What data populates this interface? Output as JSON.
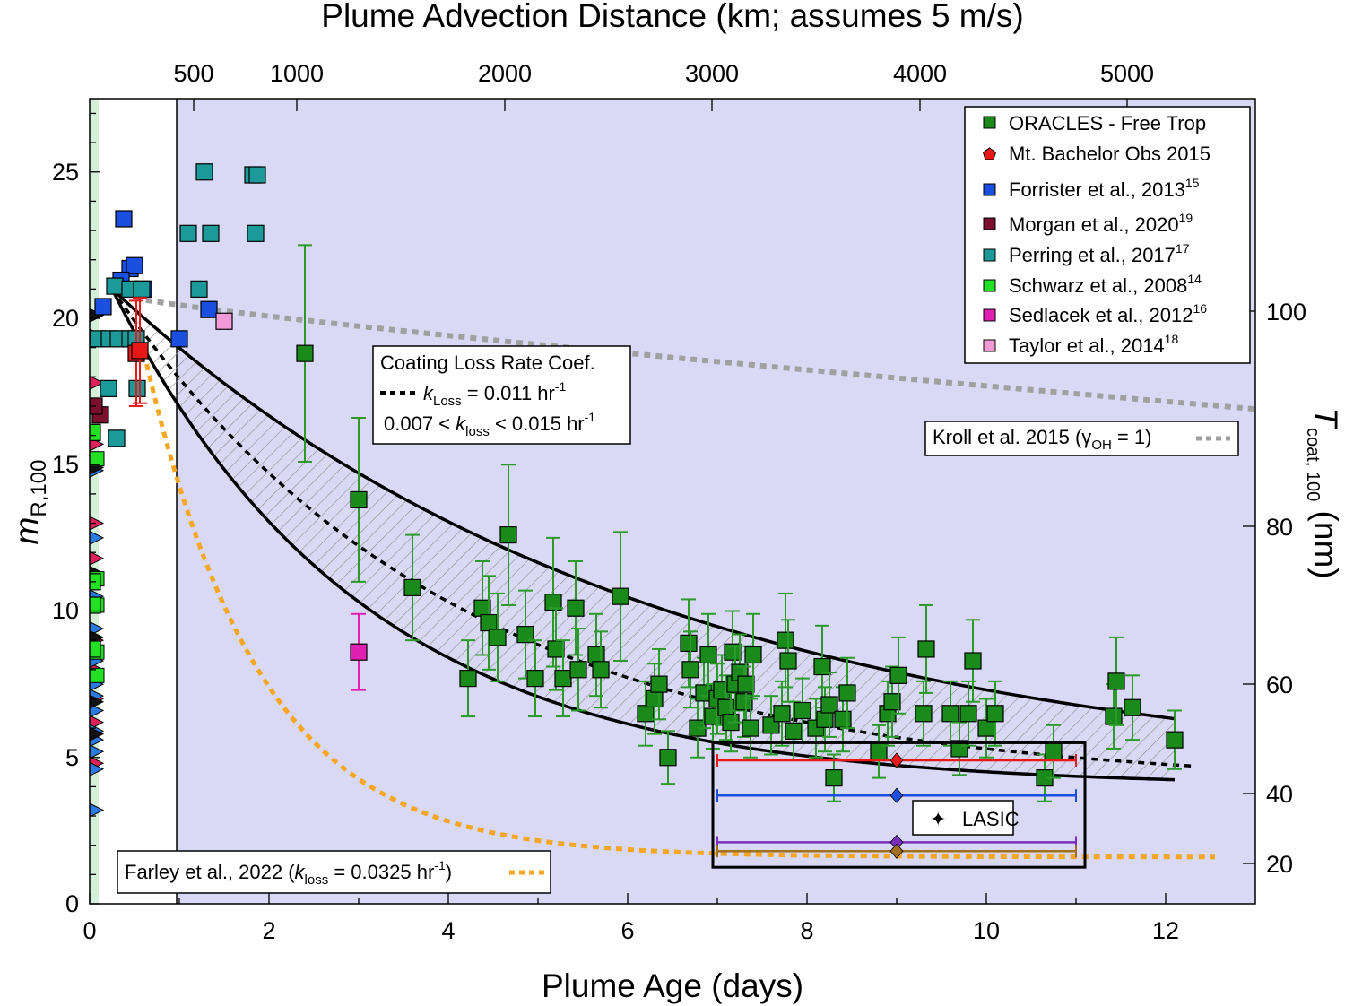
{
  "chart_data": {
    "type": "scatter",
    "xlabel": "Plume Age (days)",
    "x2label": "Plume Advection Distance (km; assumes 5 m/s)",
    "ylabel": "m",
    "ylabel_sub": "R,100",
    "y2label": "T",
    "y2label_sub": "coat, 100",
    "y2label_suffix": " (nm)",
    "xlim": [
      0,
      13
    ],
    "ylim": [
      0,
      27.5
    ],
    "x_ticks": [
      "0",
      "2",
      "4",
      "6",
      "8",
      "10",
      "12"
    ],
    "y_ticks": [
      "0",
      "5",
      "10",
      "15",
      "20",
      "25"
    ],
    "x2_ticks": [
      "500",
      "1000",
      "2000",
      "3000",
      "4000",
      "5000"
    ],
    "y2_ticks": [
      "20",
      "40",
      "60",
      "80",
      "100"
    ],
    "legend": [
      {
        "label": "ORACLES - Free Trop",
        "sup": "",
        "color": "#1a8a1a",
        "marker": "square"
      },
      {
        "label": "Mt. Bachelor Obs 2015",
        "sup": "",
        "color": "#e81818",
        "marker": "pentagon"
      },
      {
        "label": "Forrister et al., 2013",
        "sup": "15",
        "color": "#1a4fe0",
        "marker": "square"
      },
      {
        "label": "Morgan et al., 2020",
        "sup": "19",
        "color": "#7a0f2e",
        "marker": "square"
      },
      {
        "label": "Perring et al., 2017",
        "sup": "17",
        "color": "#1c9a9a",
        "marker": "square"
      },
      {
        "label": "Schwarz et al., 2008",
        "sup": "14",
        "color": "#22e022",
        "marker": "square"
      },
      {
        "label": "Sedlacek et al., 2012",
        "sup": "16",
        "color": "#e020b0",
        "marker": "square"
      },
      {
        "label": "Taylor et al., 2014",
        "sup": "18",
        "color": "#f29ad8",
        "marker": "square"
      }
    ],
    "annotations": {
      "coating_title": "Coating Loss Rate Coef.",
      "k_line_pre": "k",
      "k_line_sub": "Loss",
      "k_line_mid": " = 0.011 hr",
      "k_line_sup": "-1",
      "k_range_pre": "0.007 < ",
      "k_range_k": "k",
      "k_range_sub": "loss",
      "k_range_mid": " < 0.015 hr",
      "k_range_sup": "-1",
      "kroll_pre": "Kroll et al. 2015 (γ",
      "kroll_sub": "OH",
      "kroll_post": " = 1)",
      "farley_pre": "Farley et al., 2022 (",
      "farley_k": "k",
      "farley_sub": "loss",
      "farley_mid": " = 0.0325 hr",
      "farley_sup": "-1",
      "farley_post": ")",
      "lasic": "LASIC"
    },
    "colors": {
      "background_shade": "#d9d9f5",
      "edge_shade": "#d4f0d8",
      "oracles": "#1a8a1a",
      "fit": "#000000",
      "kroll": "#a0a0a0",
      "farley": "#f5a623"
    },
    "curves": {
      "fit_start": [
        0.25,
        21.0
      ],
      "fit_k": 0.011,
      "fit_k_low": 0.007,
      "fit_k_high": 0.015,
      "asymptote": 4.0,
      "kroll": {
        "x": [
          0.5,
          13
        ],
        "y": [
          20.7,
          16.9
        ]
      },
      "farley": {
        "k": 0.0325,
        "asymptote": 1.6,
        "start": [
          0.55,
          19.6
        ]
      }
    },
    "series": [
      {
        "name": "ORACLES - Free Trop",
        "color": "#1a8a1a",
        "points": [
          [
            2.4,
            18.8,
            3.7
          ],
          [
            3.0,
            13.8,
            2.8
          ],
          [
            3.6,
            10.8,
            1.8
          ],
          [
            4.22,
            7.7,
            1.3
          ],
          [
            4.38,
            10.1,
            1.6
          ],
          [
            4.45,
            9.6,
            1.6
          ],
          [
            4.55,
            9.1,
            1.5
          ],
          [
            4.67,
            12.6,
            2.4
          ],
          [
            4.86,
            9.2,
            1.5
          ],
          [
            4.97,
            7.7,
            1.3
          ],
          [
            5.17,
            10.3,
            2.2
          ],
          [
            5.2,
            8.7,
            1.4
          ],
          [
            5.28,
            7.7,
            1.3
          ],
          [
            5.42,
            10.1,
            1.6
          ],
          [
            5.45,
            8.0,
            1.4
          ],
          [
            5.65,
            8.5,
            1.4
          ],
          [
            5.7,
            8.0,
            1.3
          ],
          [
            5.92,
            10.5,
            2.2
          ],
          [
            6.2,
            6.5,
            1.1
          ],
          [
            6.3,
            7.0,
            1.2
          ],
          [
            6.35,
            7.5,
            1.2
          ],
          [
            6.45,
            5.0,
            0.9
          ],
          [
            6.68,
            8.9,
            1.5
          ],
          [
            6.7,
            8.0,
            1.3
          ],
          [
            6.78,
            6.0,
            1.0
          ],
          [
            6.85,
            7.2,
            1.2
          ],
          [
            6.9,
            8.5,
            1.4
          ],
          [
            6.95,
            6.4,
            1.1
          ],
          [
            7.0,
            7.0,
            1.2
          ],
          [
            7.05,
            7.3,
            1.2
          ],
          [
            7.1,
            6.7,
            1.1
          ],
          [
            7.15,
            6.2,
            1.0
          ],
          [
            7.17,
            8.6,
            1.4
          ],
          [
            7.2,
            7.5,
            1.3
          ],
          [
            7.25,
            7.9,
            1.3
          ],
          [
            7.3,
            6.9,
            1.2
          ],
          [
            7.32,
            7.5,
            1.3
          ],
          [
            7.37,
            6.0,
            1.0
          ],
          [
            7.4,
            8.5,
            1.4
          ],
          [
            7.6,
            6.1,
            1.0
          ],
          [
            7.72,
            6.5,
            1.1
          ],
          [
            7.76,
            9.0,
            1.6
          ],
          [
            7.79,
            8.3,
            1.4
          ],
          [
            7.85,
            5.9,
            1.0
          ],
          [
            7.95,
            6.6,
            1.1
          ],
          [
            8.1,
            6.0,
            1.0
          ],
          [
            8.17,
            8.1,
            1.4
          ],
          [
            8.2,
            6.3,
            1.1
          ],
          [
            8.25,
            6.8,
            1.1
          ],
          [
            8.3,
            4.3,
            0.8
          ],
          [
            8.4,
            6.3,
            1.1
          ],
          [
            8.45,
            7.2,
            1.2
          ],
          [
            8.8,
            5.2,
            0.9
          ],
          [
            8.9,
            6.5,
            1.1
          ],
          [
            8.95,
            6.9,
            1.2
          ],
          [
            9.02,
            7.8,
            1.3
          ],
          [
            9.3,
            6.5,
            1.1
          ],
          [
            9.33,
            8.7,
            1.5
          ],
          [
            9.6,
            6.5,
            1.1
          ],
          [
            9.7,
            5.3,
            0.9
          ],
          [
            9.8,
            6.5,
            1.1
          ],
          [
            9.85,
            8.3,
            1.4
          ],
          [
            10.0,
            6.0,
            1.0
          ],
          [
            10.1,
            6.5,
            1.1
          ],
          [
            10.65,
            4.3,
            0.8
          ],
          [
            10.75,
            5.2,
            0.9
          ],
          [
            11.42,
            6.4,
            1.1
          ],
          [
            11.45,
            7.6,
            1.5
          ],
          [
            11.63,
            6.7,
            1.1
          ],
          [
            12.1,
            5.6,
            1.0
          ]
        ]
      },
      {
        "name": "Forrister et al., 2013",
        "color": "#1a4fe0",
        "points": [
          [
            0.38,
            23.4
          ],
          [
            0.45,
            21.7
          ],
          [
            0.5,
            21.8
          ],
          [
            0.15,
            20.4
          ],
          [
            1.0,
            19.3
          ],
          [
            1.33,
            20.3
          ],
          [
            0.35,
            21.3
          ],
          [
            0.6,
            21.0
          ]
        ]
      },
      {
        "name": "Perring et al., 2017",
        "color": "#1c9a9a",
        "points": [
          [
            1.28,
            25.0
          ],
          [
            1.82,
            24.9
          ],
          [
            1.87,
            24.9
          ],
          [
            1.1,
            22.9
          ],
          [
            1.35,
            22.9
          ],
          [
            1.85,
            22.9
          ],
          [
            1.22,
            21.0
          ],
          [
            0.28,
            21.1
          ],
          [
            0.45,
            21.0
          ],
          [
            0.58,
            21.0
          ],
          [
            0.1,
            19.3
          ],
          [
            0.22,
            19.3
          ],
          [
            0.32,
            19.3
          ],
          [
            0.45,
            19.3
          ],
          [
            0.52,
            19.3
          ],
          [
            0.21,
            17.6
          ],
          [
            0.53,
            17.6
          ],
          [
            0.3,
            15.9
          ]
        ]
      },
      {
        "name": "Taylor et al., 2014",
        "color": "#f29ad8",
        "points": [
          [
            1.5,
            19.9
          ]
        ]
      },
      {
        "name": "Sedlacek et al., 2012",
        "color": "#e020b0",
        "points": [
          [
            3.0,
            8.6,
            1.3
          ]
        ]
      },
      {
        "name": "Mt. Bachelor Obs 2015",
        "color": "#e81818",
        "points": [
          [
            0.52,
            18.8,
            1.8
          ],
          [
            0.56,
            18.9,
            1.8
          ]
        ]
      },
      {
        "name": "Morgan et al., 2020",
        "color": "#7a0f2e",
        "points": [
          [
            0.12,
            16.7
          ],
          [
            0.05,
            17.0
          ]
        ]
      },
      {
        "name": "Schwarz et al., 2008",
        "color": "#22e022",
        "points": [
          [
            0.03,
            16.1
          ],
          [
            0.03,
            11.0
          ],
          [
            0.03,
            10.2
          ],
          [
            0.03,
            8.7
          ]
        ]
      }
    ],
    "edge_markers": {
      "x": 0.04,
      "blue_y": [
        14.8,
        12.5,
        10.5,
        9.4,
        8.3,
        7.5,
        7.1,
        6.6,
        5.9,
        5.6,
        5.2,
        4.6,
        3.2
      ],
      "red_y": [
        17.8,
        15.7,
        13.0,
        11.8,
        9.0,
        8.0,
        7.0,
        6.2,
        4.8
      ],
      "black_y": [
        20.1,
        19.4,
        14.9,
        11.3,
        9.1,
        6.9,
        5.8
      ],
      "green_y": [
        15.2,
        11.1,
        10.2,
        8.6,
        7.8
      ]
    },
    "lasic": {
      "x": 9.0,
      "xerr_low": 7.0,
      "xerr_high": 11.0,
      "rows": [
        {
          "y": 4.9,
          "color": "#e81818"
        },
        {
          "y": 3.7,
          "color": "#1a4fe0"
        },
        {
          "y": 2.1,
          "color": "#7a2fc0"
        },
        {
          "y": 1.8,
          "color": "#a07020"
        }
      ]
    }
  }
}
